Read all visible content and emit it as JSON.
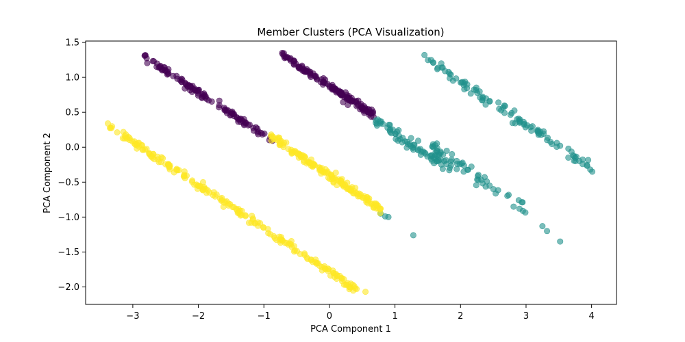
{
  "chart_data": {
    "type": "scatter",
    "title": "Member Clusters (PCA Visualization)",
    "xlabel": "PCA Component 1",
    "ylabel": "PCA Component 2",
    "xlim": [
      -3.72,
      4.38
    ],
    "ylim": [
      -2.25,
      1.52
    ],
    "xticks": [
      -3,
      -2,
      -1,
      0,
      1,
      2,
      3,
      4
    ],
    "xtick_labels": [
      "−3",
      "−2",
      "−1",
      "0",
      "1",
      "2",
      "3",
      "4"
    ],
    "yticks": [
      -2.0,
      -1.5,
      -1.0,
      -0.5,
      0.0,
      0.5,
      1.0,
      1.5
    ],
    "ytick_labels": [
      "−2.0",
      "−1.5",
      "−1.0",
      "−0.5",
      "0.0",
      "0.5",
      "1.0",
      "1.5"
    ],
    "grid": false,
    "legend": "none",
    "point_alpha": 0.6,
    "series": [
      {
        "color": "#440154",
        "segments": [
          {
            "x0": -2.82,
            "x1": -0.85,
            "n": 110,
            "jitter": 0.025,
            "y_intercept": -0.45,
            "slope": -0.62
          },
          {
            "x0": -0.72,
            "x1": 0.68,
            "n": 140,
            "jitter": 0.025,
            "y_intercept": 0.88,
            "slope": -0.62
          }
        ],
        "points": [
          {
            "x": -2.82,
            "y": 1.31
          },
          {
            "x": -2.68,
            "y": 1.23
          },
          {
            "x": -2.58,
            "y": 1.15
          },
          {
            "x": -2.32,
            "y": 0.98
          },
          {
            "x": -2.2,
            "y": 0.92
          },
          {
            "x": -1.6,
            "y": 0.53
          },
          {
            "x": -0.72,
            "y": 1.35
          },
          {
            "x": -0.6,
            "y": 1.26
          },
          {
            "x": 0.0,
            "y": 0.88
          },
          {
            "x": 0.5,
            "y": 0.57
          },
          {
            "x": -0.9,
            "y": 0.14
          }
        ]
      },
      {
        "color": "#21918c",
        "segments": [
          {
            "x0": 0.7,
            "x1": 1.85,
            "n": 70,
            "jitter": 0.04,
            "y_intercept": 0.82,
            "slope": -0.62
          },
          {
            "x0": 1.55,
            "x1": 3.0,
            "n": 55,
            "jitter": 0.05,
            "y_intercept": 0.98,
            "slope": -0.62
          },
          {
            "x0": 1.48,
            "x1": 3.95,
            "n": 95,
            "jitter": 0.04,
            "y_intercept": 2.18,
            "slope": -0.62
          }
        ],
        "points": [
          {
            "x": 1.45,
            "y": 1.32
          },
          {
            "x": 1.55,
            "y": 1.25
          },
          {
            "x": 0.85,
            "y": -0.99
          },
          {
            "x": 0.9,
            "y": -1.0
          },
          {
            "x": 0.78,
            "y": -0.95
          },
          {
            "x": 1.28,
            "y": -1.26
          },
          {
            "x": 3.25,
            "y": -1.13
          },
          {
            "x": 3.32,
            "y": -1.2
          },
          {
            "x": 3.52,
            "y": -1.35
          },
          {
            "x": 3.98,
            "y": -0.32
          },
          {
            "x": 4.01,
            "y": -0.35
          },
          {
            "x": 3.75,
            "y": -0.15
          },
          {
            "x": 3.52,
            "y": 0.02
          }
        ]
      },
      {
        "color": "#fde725",
        "segments": [
          {
            "x0": -3.38,
            "x1": 0.42,
            "n": 200,
            "jitter": 0.03,
            "y_intercept": -1.78,
            "slope": -0.62
          },
          {
            "x0": -0.9,
            "x1": 0.78,
            "n": 150,
            "jitter": 0.03,
            "y_intercept": -0.4,
            "slope": -0.62
          }
        ],
        "points": [
          {
            "x": -3.38,
            "y": 0.34
          },
          {
            "x": 0.25,
            "y": -1.97
          },
          {
            "x": 0.38,
            "y": -1.99
          },
          {
            "x": 0.55,
            "y": -2.07
          },
          {
            "x": 0.22,
            "y": -1.89
          },
          {
            "x": 0.78,
            "y": -0.88
          }
        ]
      }
    ]
  }
}
